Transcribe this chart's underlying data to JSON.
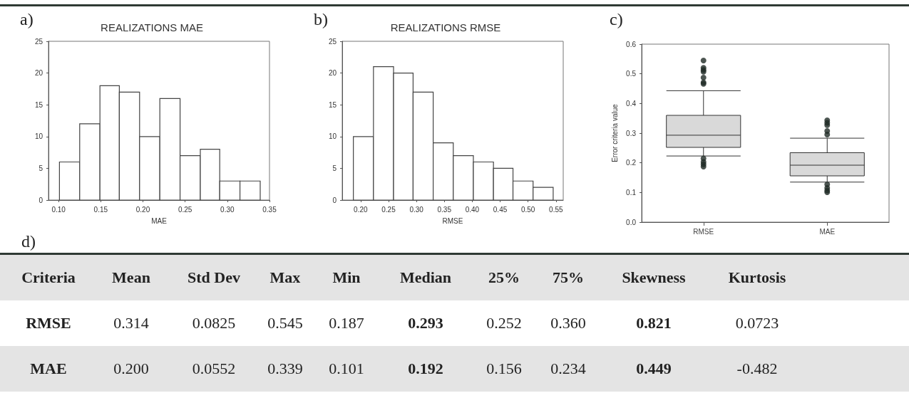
{
  "chart_data": [
    {
      "type": "histogram",
      "title": "REALIZATIONS MAE",
      "xlabel": "MAE",
      "annotations": [
        "a)"
      ],
      "color": "#ffffff",
      "bins": [
        0.101,
        0.125,
        0.149,
        0.172,
        0.196,
        0.22,
        0.244,
        0.268,
        0.291,
        0.315,
        0.339
      ],
      "values": [
        6,
        12,
        18,
        17,
        10,
        16,
        7,
        8,
        3,
        3
      ],
      "xlim": [
        0.088,
        0.35
      ],
      "xticks": [
        {
          "value": 0.1,
          "label": "0.10"
        },
        {
          "value": 0.15,
          "label": "0.15"
        },
        {
          "value": 0.2,
          "label": "0.20"
        },
        {
          "value": 0.25,
          "label": "0.25"
        },
        {
          "value": 0.3,
          "label": "0.30"
        },
        {
          "value": 0.35,
          "label": "0.35"
        }
      ],
      "ylim": [
        0,
        25
      ],
      "yticks": [
        0,
        5,
        10,
        15,
        20,
        25
      ],
      "grid": false,
      "legend": false
    },
    {
      "type": "histogram",
      "title": "REALIZATIONS RMSE",
      "xlabel": "RMSE",
      "annotations": [
        "b)"
      ],
      "color": "#ffffff",
      "bins": [
        0.187,
        0.223,
        0.259,
        0.294,
        0.33,
        0.366,
        0.402,
        0.438,
        0.473,
        0.509,
        0.545
      ],
      "values": [
        10,
        21,
        20,
        17,
        9,
        7,
        6,
        5,
        3,
        2
      ],
      "xlim": [
        0.167,
        0.563
      ],
      "xticks": [
        {
          "value": 0.2,
          "label": "0.20"
        },
        {
          "value": 0.25,
          "label": "0.25"
        },
        {
          "value": 0.3,
          "label": "0.30"
        },
        {
          "value": 0.35,
          "label": "0.35"
        },
        {
          "value": 0.4,
          "label": "0.40"
        },
        {
          "value": 0.45,
          "label": "0.45"
        },
        {
          "value": 0.5,
          "label": "0.50"
        },
        {
          "value": 0.55,
          "label": "0.55"
        }
      ],
      "ylim": [
        0,
        25
      ],
      "yticks": [
        0,
        5,
        10,
        15,
        20,
        25
      ],
      "grid": false,
      "legend": false
    },
    {
      "type": "box",
      "ylabel": "Error criteria value",
      "annotations": [
        "c)"
      ],
      "categories": [
        "RMSE",
        "MAE"
      ],
      "series": [
        {
          "color": "#d9d9d9",
          "boxes": [
            {
              "low": 0.223,
              "q1": 0.252,
              "median": 0.293,
              "q3": 0.36,
              "high": 0.443,
              "outliers": [
                0.545,
                0.52,
                0.513,
                0.507,
                0.487,
                0.471,
                0.466,
                0.215,
                0.203,
                0.195,
                0.187
              ]
            },
            {
              "low": 0.135,
              "q1": 0.156,
              "median": 0.192,
              "q3": 0.234,
              "high": 0.283,
              "outliers": [
                0.343,
                0.335,
                0.327,
                0.307,
                0.295,
                0.127,
                0.115,
                0.107,
                0.101
              ]
            }
          ]
        }
      ],
      "ylim": [
        0,
        0.6
      ],
      "yticks": [
        {
          "value": 0,
          "label": "0.0"
        },
        {
          "value": 0.1,
          "label": "0.1"
        },
        {
          "value": 0.2,
          "label": "0.2"
        },
        {
          "value": 0.3,
          "label": "0.3"
        },
        {
          "value": 0.4,
          "label": "0.4"
        },
        {
          "value": 0.5,
          "label": "0.5"
        },
        {
          "value": 0.6,
          "label": "0.6"
        }
      ],
      "grid": false,
      "legend": false
    },
    {
      "type": "other",
      "title": "d)",
      "annotations": [
        "Criteria",
        "Mean",
        "Std Dev",
        "Max",
        "Min",
        "Median",
        "25%",
        "75%",
        "Skewness",
        "Kurtosis",
        "RMSE",
        "0.314",
        "0.0825",
        "0.545",
        "0.187",
        "0.293",
        "0.252",
        "0.360",
        "0.821",
        "0.0723",
        "MAE",
        "0.200",
        "0.0552",
        "0.339",
        "0.101",
        "0.192",
        "0.156",
        "0.234",
        "0.449",
        "-0.482"
      ]
    }
  ]
}
